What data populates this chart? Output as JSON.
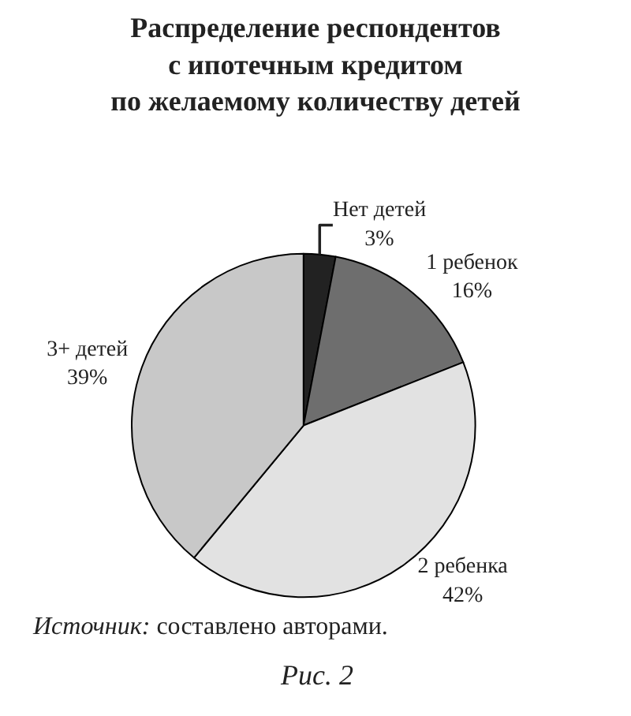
{
  "chart_data": {
    "type": "pie",
    "title": "Распределение респондентов\nс ипотечным кредитом\nпо желаемому количеству детей",
    "categories": [
      "Нет детей",
      "1 ребенок",
      "2 ребенка",
      "3+ детей"
    ],
    "values": [
      3,
      16,
      42,
      39
    ],
    "colors": [
      "#222222",
      "#6e6e6e",
      "#e2e2e2",
      "#c8c8c8"
    ],
    "value_labels": [
      "3%",
      "16%",
      "42%",
      "39%"
    ],
    "legend": false,
    "annotations": [
      "Источник: составлено авторами.",
      "Рис. 2"
    ]
  }
}
